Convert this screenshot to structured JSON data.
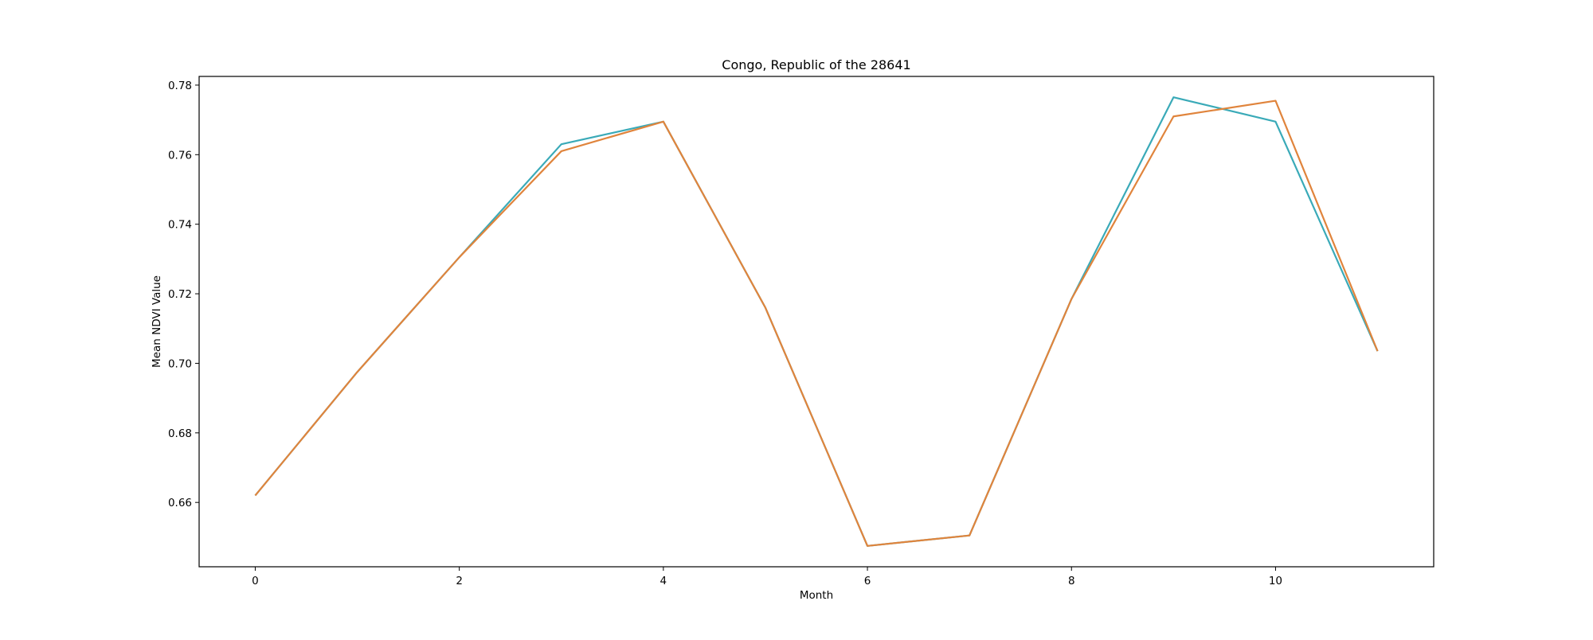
{
  "chart_data": {
    "type": "line",
    "title": "Congo, Republic of the 28641",
    "xlabel": "Month",
    "ylabel": "Mean NDVI Value",
    "xlim": [
      -0.55,
      11.55
    ],
    "ylim": [
      0.6415,
      0.7825
    ],
    "xticks": [
      0,
      2,
      4,
      6,
      8,
      10
    ],
    "yticks": [
      0.66,
      0.68,
      0.7,
      0.72,
      0.74,
      0.76,
      0.78
    ],
    "ytick_labels": [
      "0.66",
      "0.68",
      "0.70",
      "0.72",
      "0.74",
      "0.76",
      "0.78"
    ],
    "grid": false,
    "legend": "none",
    "x": [
      0,
      1,
      2,
      3,
      4,
      5,
      6,
      7,
      8,
      9,
      10,
      11
    ],
    "series": [
      {
        "color": "#3aaab8",
        "values": [
          0.662,
          0.6975,
          0.7305,
          0.763,
          0.7695,
          0.716,
          0.6475,
          0.6505,
          0.7185,
          0.7765,
          0.7695,
          0.7035
        ]
      },
      {
        "color": "#e0843c",
        "values": [
          0.662,
          0.6975,
          0.7305,
          0.761,
          0.7695,
          0.716,
          0.6475,
          0.6505,
          0.7185,
          0.771,
          0.7755,
          0.7035
        ]
      }
    ]
  }
}
